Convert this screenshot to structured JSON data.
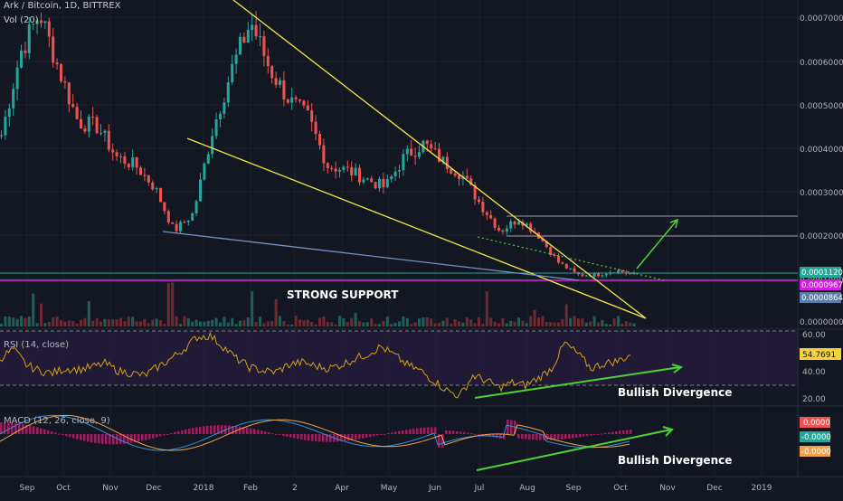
{
  "header": {
    "symbol": "Ark / Bitcoin, 1D, BITTREX",
    "volume_label": "Vol (20)"
  },
  "colors": {
    "background": "#131722",
    "grid": "#1e2230",
    "up": "#26a69a",
    "down": "#ef5350",
    "trendline": "#f5e84a",
    "support_line": "#6e93c4",
    "support_level": "#d51fdf",
    "green_level": "#26a69a",
    "arrow": "#4cd137",
    "rsi_band": "#2b1e47",
    "rsi_line": "#d4a017",
    "macd_line": "#2d95d8",
    "signal_line": "#f0a24a",
    "hist": "#9c1f60"
  },
  "chart_data": [
    {
      "type": "line",
      "title": "Ark / Bitcoin, 1D, BITTREX",
      "x_ticks": [
        "Sep",
        "Oct",
        "Nov",
        "Dec",
        "2018",
        "Feb",
        "2",
        "Apr",
        "May",
        "Jun",
        "Jul",
        "Aug",
        "Sep",
        "Oct",
        "Nov",
        "Dec",
        "2019"
      ],
      "y_ticks": [
        "0.00070000",
        "0.00060000",
        "0.00050000",
        "0.00040000",
        "0.00030000",
        "0.00020000",
        "0.00010000",
        "0.00000000"
      ],
      "ylim": [
        0,
        0.0007
      ],
      "series": [
        {
          "x": [
            "Sep",
            "Sep",
            "Oct",
            "Oct",
            "Oct",
            "Nov",
            "Nov",
            "Nov",
            "Dec",
            "Dec",
            "Dec",
            "2018",
            "2018",
            "2018",
            "Feb",
            "Feb",
            "Feb",
            "2",
            "2",
            "Apr",
            "Apr",
            "May",
            "May",
            "May",
            "Jun",
            "Jun",
            "Jul",
            "Jul",
            "Jul",
            "Aug",
            "Aug",
            "Sep",
            "Sep",
            "Oct"
          ],
          "values": [
            0.00043,
            0.00062,
            0.00071,
            0.00058,
            0.00046,
            0.00045,
            0.00038,
            0.00036,
            0.00031,
            0.00021,
            0.00025,
            0.00044,
            0.00058,
            0.00069,
            0.00058,
            0.00051,
            0.00047,
            0.00036,
            0.00035,
            0.00033,
            0.00031,
            0.00038,
            0.00041,
            0.00037,
            0.00034,
            0.00027,
            0.00021,
            0.00024,
            0.0002,
            0.00014,
            0.00011,
            0.00011,
            0.00012,
            0.00011
          ]
        }
      ],
      "price_labels": [
        {
          "value": "0.00011204",
          "color": "#26a69a"
        },
        {
          "value": "0.00009671",
          "color": "#d51fdf"
        },
        {
          "value": "0.00008642",
          "color": "#5a7fa6"
        }
      ],
      "annotations": [
        "STRONG SUPPORT"
      ],
      "grid": true
    },
    {
      "type": "line",
      "title": "RSI (14, close)",
      "y_ticks": [
        "60.00",
        "40.00",
        "20.00"
      ],
      "ylim": [
        15,
        75
      ],
      "current_label": "54.7691",
      "values": [
        52,
        60,
        47,
        42,
        40,
        44,
        43,
        45,
        48,
        42,
        40,
        38,
        45,
        52,
        60,
        70,
        71,
        62,
        52,
        45,
        42,
        41,
        47,
        49,
        46,
        44,
        47,
        52,
        56,
        62,
        55,
        47,
        42,
        34,
        26,
        21,
        38,
        34,
        28,
        32,
        30,
        36,
        44,
        65,
        56,
        44,
        48,
        50,
        55
      ],
      "annotations": [
        "Bullish Divergence"
      ]
    },
    {
      "type": "line",
      "title": "MACD (12, 26, close, 9)",
      "value_labels": [
        {
          "value": "0.0000",
          "color": "#ef5350"
        },
        {
          "value": "-0.0000",
          "color": "#26a69a"
        },
        {
          "value": "-0.0000",
          "color": "#f0a24a"
        }
      ],
      "annotations": [
        "Bullish Divergence"
      ]
    }
  ]
}
